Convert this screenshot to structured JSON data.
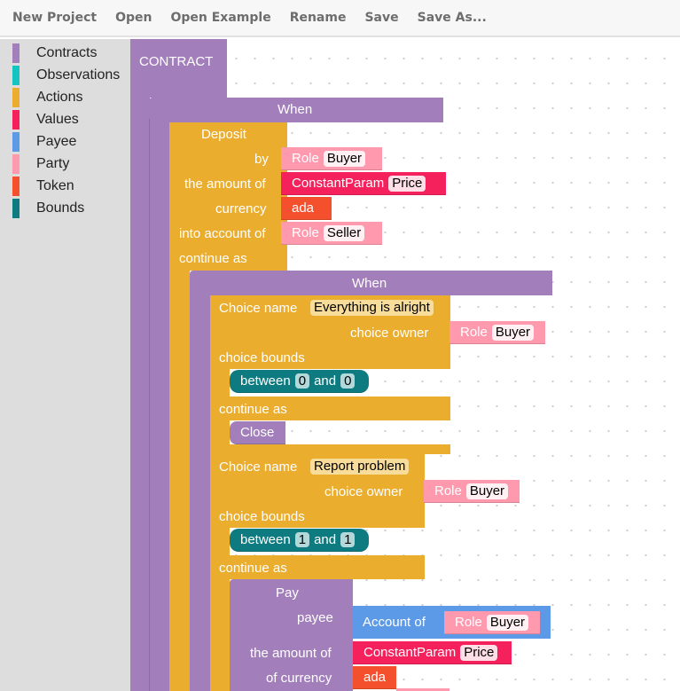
{
  "menu": [
    "New Project",
    "Open",
    "Open Example",
    "Rename",
    "Save",
    "Save As..."
  ],
  "toolbox": [
    {
      "label": "Contracts",
      "color": "#a27fba"
    },
    {
      "label": "Observations",
      "color": "#14c4c1"
    },
    {
      "label": "Actions",
      "color": "#ebad2e"
    },
    {
      "label": "Values",
      "color": "#f5215c"
    },
    {
      "label": "Payee",
      "color": "#5c9ae8"
    },
    {
      "label": "Party",
      "color": "#ff9aae"
    },
    {
      "label": "Token",
      "color": "#f5502d"
    },
    {
      "label": "Bounds",
      "color": "#0d7b80"
    }
  ],
  "blocks": {
    "contract": "CONTRACT",
    "when": "When",
    "deposit": "Deposit",
    "by": "by",
    "amount_of": "the amount of",
    "currency": "currency",
    "into_account": "into account of",
    "continue_as": "continue as",
    "role": "Role",
    "buyer": "Buyer",
    "seller": "Seller",
    "constant_param": "ConstantParam",
    "price": "Price",
    "ada": "ada",
    "choice_name": "Choice name",
    "choice1": "Everything is alright",
    "choice2": "Report problem",
    "choice_owner": "choice owner",
    "choice_bounds": "choice bounds",
    "between": "between",
    "and": "and",
    "b1_lo": "0",
    "b1_hi": "0",
    "b2_lo": "1",
    "b2_hi": "1",
    "close": "Close",
    "pay": "Pay",
    "payee": "payee",
    "account_of": "Account of",
    "of_currency": "of currency"
  }
}
